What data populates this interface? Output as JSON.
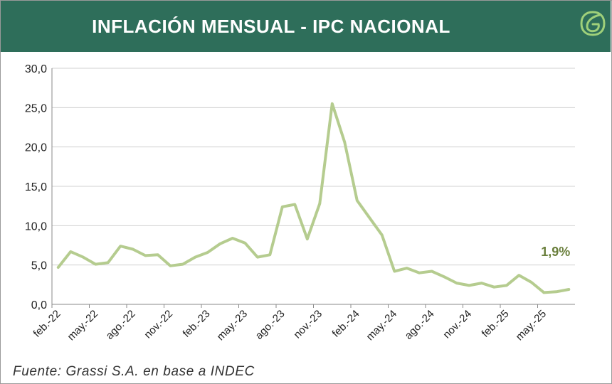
{
  "header": {
    "title": "INFLACIÓN MENSUAL - IPC NACIONAL",
    "logo_icon": "leaf-g-logo-icon"
  },
  "footer": {
    "source": "Fuente: Grassi S.A. en base a INDEC"
  },
  "colors": {
    "header_bg": "#2e6e5a",
    "line": "#b5cc8f",
    "annotation": "#6a7f3c",
    "grid": "#d0d0d0"
  },
  "chart_data": {
    "type": "line",
    "title": "INFLACIÓN MENSUAL - IPC NACIONAL",
    "xlabel": "",
    "ylabel": "",
    "ylim": [
      0,
      30
    ],
    "y_ticks": [
      "0,0",
      "5,0",
      "10,0",
      "15,0",
      "20,0",
      "25,0",
      "30,0"
    ],
    "grid": true,
    "legend": "none",
    "x_tick_labels": [
      "feb.-22",
      "may.-22",
      "ago.-22",
      "nov.-22",
      "feb.-23",
      "may.-23",
      "ago.-23",
      "nov.-23",
      "feb.-24",
      "may.-24",
      "ago.-24",
      "nov.-24",
      "feb.-25",
      "may.-25"
    ],
    "x": [
      "feb.-22",
      "mar.-22",
      "abr.-22",
      "may.-22",
      "jun.-22",
      "jul.-22",
      "ago.-22",
      "sep.-22",
      "oct.-22",
      "nov.-22",
      "dic.-22",
      "ene.-23",
      "feb.-23",
      "mar.-23",
      "abr.-23",
      "may.-23",
      "jun.-23",
      "jul.-23",
      "ago.-23",
      "sep.-23",
      "oct.-23",
      "nov.-23",
      "dic.-23",
      "ene.-24",
      "feb.-24",
      "mar.-24",
      "abr.-24",
      "may.-24",
      "jun.-24",
      "jul.-24",
      "ago.-24",
      "sep.-24",
      "oct.-24",
      "nov.-24",
      "dic.-24",
      "ene.-25",
      "feb.-25",
      "mar.-25",
      "abr.-25",
      "may.-25",
      "jun.-25",
      "jul.-25"
    ],
    "values": [
      4.7,
      6.7,
      6.0,
      5.1,
      5.3,
      7.4,
      7.0,
      6.2,
      6.3,
      4.9,
      5.1,
      6.0,
      6.6,
      7.7,
      8.4,
      7.8,
      6.0,
      6.3,
      12.4,
      12.7,
      8.3,
      12.8,
      25.5,
      20.6,
      13.2,
      11.0,
      8.8,
      4.2,
      4.6,
      4.0,
      4.2,
      3.5,
      2.7,
      2.4,
      2.7,
      2.2,
      2.4,
      3.7,
      2.8,
      1.5,
      1.6,
      1.9
    ],
    "annotation": {
      "text": "1,9%",
      "category": "jul.-25"
    }
  }
}
